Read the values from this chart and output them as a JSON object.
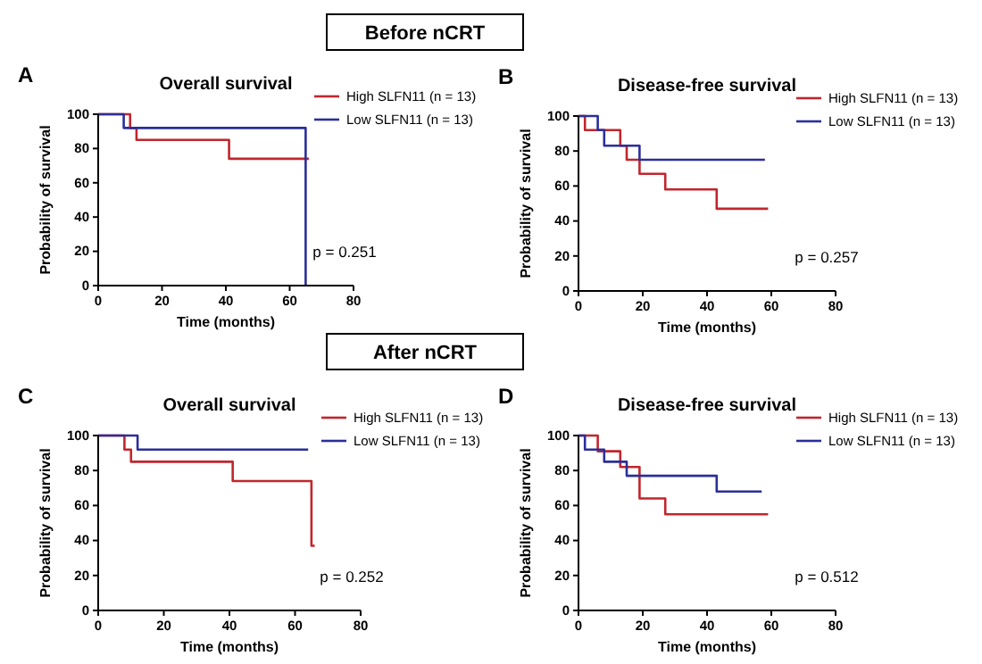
{
  "chart_data": [
    {
      "type": "step",
      "title": "Overall survival",
      "subtitle": "Before nCRT",
      "xlabel": "Time (months)",
      "ylabel": "Probability of survival",
      "xlim": [
        0,
        80
      ],
      "xticks": [
        0,
        20,
        40,
        60,
        80
      ],
      "ylim": [
        0,
        100
      ],
      "yticks": [
        0,
        20,
        40,
        60,
        80,
        100
      ],
      "legend": "top right",
      "annotations": [
        "A",
        "p = 0.251"
      ],
      "series": [
        {
          "name": "High SLFN11 (n = 13)",
          "color": "#c0262d",
          "x": [
            0,
            10,
            12,
            41,
            66
          ],
          "values": [
            100,
            92,
            85,
            74,
            74
          ]
        },
        {
          "name": "Low SLFN11  (n = 13)",
          "color": "#2b2f99",
          "x": [
            0,
            8,
            65
          ],
          "values": [
            100,
            92,
            0
          ]
        }
      ]
    },
    {
      "type": "step",
      "title": "Disease-free survival",
      "xlabel": "Time (months)",
      "ylabel": "Probability of survival",
      "xlim": [
        0,
        80
      ],
      "xticks": [
        0,
        20,
        40,
        60,
        80
      ],
      "ylim": [
        0,
        100
      ],
      "yticks": [
        0,
        20,
        40,
        60,
        80,
        100
      ],
      "legend": "top right",
      "annotations": [
        "B",
        "p = 0.257"
      ],
      "series": [
        {
          "name": "High SLFN11 (n = 13)",
          "color": "#c0262d",
          "x": [
            0,
            2,
            13,
            15,
            19,
            27,
            43,
            59
          ],
          "values": [
            100,
            92,
            83,
            75,
            67,
            58,
            47,
            47
          ]
        },
        {
          "name": "Low SLFN11  (n = 13)",
          "color": "#2b2f99",
          "x": [
            0,
            6,
            8,
            19,
            58
          ],
          "values": [
            100,
            92,
            83,
            75,
            75
          ]
        }
      ]
    },
    {
      "type": "step",
      "title": "Overall survival",
      "subtitle": "After nCRT",
      "xlabel": "Time (months)",
      "ylabel": "Probability of survival",
      "xlim": [
        0,
        80
      ],
      "xticks": [
        0,
        20,
        40,
        60,
        80
      ],
      "ylim": [
        0,
        100
      ],
      "yticks": [
        0,
        20,
        40,
        60,
        80,
        100
      ],
      "legend": "top right",
      "annotations": [
        "C",
        "p = 0.252"
      ],
      "series": [
        {
          "name": "High SLFN11 (n = 13)",
          "color": "#c0262d",
          "x": [
            0,
            8,
            10,
            41,
            65,
            66
          ],
          "values": [
            100,
            92,
            85,
            74,
            37,
            37
          ]
        },
        {
          "name": "Low SLFN11  (n = 13)",
          "color": "#2b2f99",
          "x": [
            0,
            12,
            64
          ],
          "values": [
            100,
            92,
            92
          ]
        }
      ]
    },
    {
      "type": "step",
      "title": "Disease-free survival",
      "xlabel": "Time (months)",
      "ylabel": "Probability of survival",
      "xlim": [
        0,
        80
      ],
      "xticks": [
        0,
        20,
        40,
        60,
        80
      ],
      "ylim": [
        0,
        100
      ],
      "yticks": [
        0,
        20,
        40,
        60,
        80,
        100
      ],
      "legend": "top right",
      "annotations": [
        "D",
        "p = 0.512"
      ],
      "series": [
        {
          "name": "High SLFN11 (n = 13)",
          "color": "#c0262d",
          "x": [
            0,
            6,
            13,
            19,
            27,
            59
          ],
          "values": [
            100,
            91,
            82,
            64,
            55,
            55
          ]
        },
        {
          "name": "Low SLFN11  (n = 13)",
          "color": "#2b2f99",
          "x": [
            0,
            2,
            8,
            15,
            43,
            57
          ],
          "values": [
            100,
            92,
            85,
            77,
            68,
            68
          ]
        }
      ]
    }
  ]
}
